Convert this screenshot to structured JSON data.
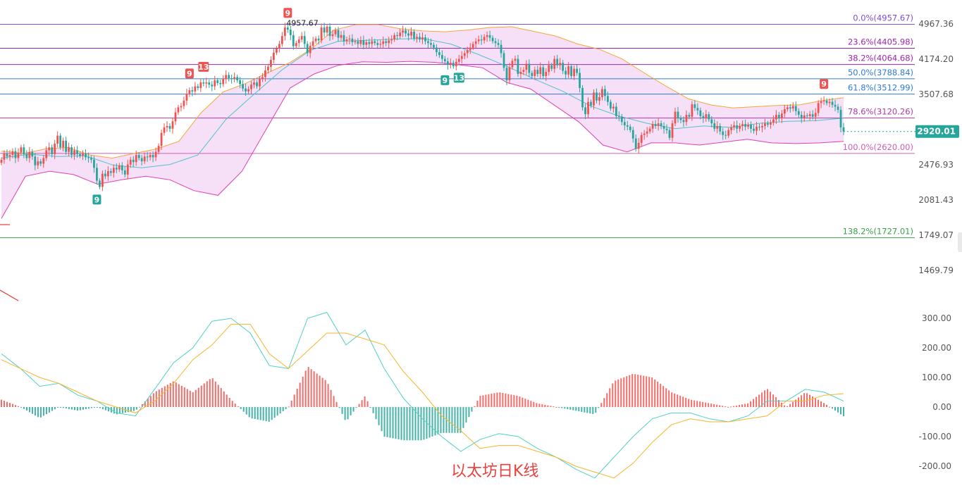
{
  "caption": "以太坊日K线",
  "colors": {
    "up": "#ef5350",
    "down": "#26a69a",
    "bb_upper": "#f7a636",
    "bb_lower": "#e040b0",
    "bb_mid": "#4fc3c7",
    "bb_fill": "#f3d6f5",
    "macd_fast": "#4fd1c5",
    "macd_slow": "#f7b52c",
    "price_tag": "#26a69a"
  },
  "chart_data": [
    {
      "type": "candlestick",
      "title": "",
      "current_price": "2920.01",
      "high_marker": "4957.67",
      "y_axis_ticks": [
        "4967.36",
        "4174.20",
        "3507.68",
        "2476.93",
        "2081.43",
        "1749.07",
        "1469.79"
      ],
      "ylim": [
        1400,
        5100
      ],
      "y_scale": "log",
      "fib_levels": [
        {
          "label": "0.0%(4957.67)",
          "price": 4957.67,
          "color": "#7b4fd0"
        },
        {
          "label": "23.6%(4405.98)",
          "price": 4405.98,
          "color": "#9c27b0"
        },
        {
          "label": "38.2%(4064.68)",
          "price": 4064.68,
          "color": "#9c27b0"
        },
        {
          "label": "50.0%(3788.84)",
          "price": 3788.84,
          "color": "#2f7bd9"
        },
        {
          "label": "61.8%(3512.99)",
          "price": 3512.99,
          "color": "#2f7bd9"
        },
        {
          "label": "78.6%(3120.26)",
          "price": 3120.26,
          "color": "#b03aa8"
        },
        {
          "label": "100.0%(2620.00)",
          "price": 2620.0,
          "color": "#d65bb5"
        },
        {
          "label": "138.2%(1727.01)",
          "price": 1727.01,
          "color": "#3aa14a"
        }
      ],
      "td_markers": [
        {
          "label": "9",
          "bar": 34,
          "position": "below",
          "color": "#26a69a"
        },
        {
          "label": "9",
          "bar": 67,
          "position": "above",
          "color": "#ef5350"
        },
        {
          "label": "13",
          "bar": 72,
          "position": "above",
          "color": "#ef5350"
        },
        {
          "label": "9",
          "bar": 102,
          "position": "above",
          "color": "#ef5350"
        },
        {
          "label": "9",
          "bar": 158,
          "position": "below",
          "color": "#26a69a"
        },
        {
          "label": "13",
          "bar": 163,
          "position": "below",
          "color": "#26a69a"
        },
        {
          "label": "9",
          "bar": 293,
          "position": "above",
          "color": "#ef5350"
        }
      ],
      "closes": [
        2540,
        2620,
        2580,
        2600,
        2650,
        2560,
        2630,
        2700,
        2610,
        2560,
        2640,
        2580,
        2470,
        2520,
        2490,
        2560,
        2660,
        2700,
        2610,
        2750,
        2860,
        2700,
        2790,
        2640,
        2700,
        2600,
        2660,
        2610,
        2590,
        2620,
        2570,
        2560,
        2540,
        2440,
        2290,
        2220,
        2370,
        2340,
        2400,
        2380,
        2440,
        2420,
        2470,
        2410,
        2360,
        2480,
        2540,
        2510,
        2600,
        2560,
        2520,
        2580,
        2570,
        2600,
        2570,
        2640,
        2720,
        2900,
        2980,
        3000,
        2960,
        3070,
        3210,
        3290,
        3310,
        3400,
        3520,
        3580,
        3560,
        3650,
        3620,
        3720,
        3700,
        3720,
        3680,
        3650,
        3760,
        3710,
        3690,
        3780,
        3860,
        3800,
        3790,
        3820,
        3760,
        3690,
        3610,
        3560,
        3600,
        3680,
        3720,
        3650,
        3780,
        3820,
        3950,
        4020,
        4160,
        4310,
        4400,
        4500,
        4680,
        4880,
        4830,
        4700,
        4450,
        4520,
        4600,
        4680,
        4500,
        4300,
        4460,
        4560,
        4620,
        4580,
        4880,
        4760,
        4900,
        4680,
        4720,
        4820,
        4640,
        4700,
        4560,
        4600,
        4620,
        4540,
        4560,
        4500,
        4580,
        4480,
        4540,
        4500,
        4560,
        4520,
        4480,
        4500,
        4560,
        4520,
        4580,
        4600,
        4700,
        4680,
        4760,
        4810,
        4740,
        4690,
        4780,
        4620,
        4660,
        4600,
        4650,
        4560,
        4520,
        4480,
        4420,
        4320,
        4260,
        4180,
        4130,
        4060,
        4100,
        4030,
        4120,
        4180,
        4240,
        4300,
        4360,
        4420,
        4500,
        4560,
        4600,
        4580,
        4660,
        4700,
        4640,
        4560,
        4520,
        4480,
        4300,
        4000,
        3760,
        4010,
        4140,
        4180,
        3880,
        3920,
        3960,
        4080,
        3900,
        3840,
        3960,
        3880,
        4010,
        3840,
        3920,
        4050,
        3980,
        4180,
        4050,
        4100,
        3940,
        3870,
        4030,
        3840,
        3980,
        3900,
        3620,
        3290,
        3180,
        3380,
        3320,
        3540,
        3400,
        3460,
        3600,
        3480,
        3380,
        3270,
        3300,
        3150,
        3140,
        3060,
        3010,
        2990,
        2940,
        2820,
        2680,
        2760,
        2870,
        2890,
        2920,
        2960,
        3030,
        3000,
        3040,
        3000,
        2960,
        2940,
        2830,
        3040,
        3220,
        3120,
        3090,
        3060,
        3170,
        3140,
        3340,
        3280,
        3240,
        3150,
        3120,
        3180,
        3100,
        3040,
        2960,
        3000,
        2920,
        2870,
        2860,
        2940,
        2980,
        3010,
        2960,
        3000,
        3030,
        2990,
        3020,
        2960,
        2930,
        2990,
        2980,
        3000,
        3040,
        3020,
        3050,
        3100,
        3170,
        3120,
        3190,
        3260,
        3290,
        3270,
        3310,
        3230,
        3170,
        3120,
        3160,
        3150,
        3180,
        3140,
        3200,
        3360,
        3390,
        3400,
        3360,
        3380,
        3330,
        3300,
        3250,
        2980,
        2920
      ],
      "bb_upper_anchor_values": [
        2650,
        2620,
        2680,
        2700,
        2600,
        2560,
        2620,
        2680,
        2780,
        3200,
        3550,
        3700,
        3900,
        4100,
        4400,
        4820,
        4950,
        4950,
        4850,
        4800,
        4780,
        4820,
        4880,
        4900,
        4790,
        4680,
        4500,
        4380,
        4180,
        3900,
        3650,
        3430,
        3330,
        3280,
        3300,
        3320,
        3330,
        3400,
        3450
      ],
      "bb_lower_anchor_values": [
        1900,
        2340,
        2400,
        2360,
        2250,
        2300,
        2340,
        2300,
        2180,
        2130,
        2400,
        2950,
        3620,
        3880,
        4050,
        4120,
        4110,
        4130,
        4110,
        4060,
        4000,
        3720,
        3600,
        3320,
        3060,
        2730,
        2640,
        2760,
        2760,
        2730,
        2770,
        2810,
        2760,
        2750,
        2760,
        2780
      ],
      "bb_mid_anchor_values": [
        2560,
        2610,
        2580,
        2590,
        2470,
        2440,
        2480,
        2600,
        3100,
        3510,
        3960,
        4360,
        4560,
        4580,
        4610,
        4620,
        4500,
        4270,
        4030,
        3780,
        3560,
        3310,
        3150,
        3040,
        2960,
        3000,
        2980,
        3040,
        3070,
        3080,
        3120
      ]
    },
    {
      "type": "macd",
      "title": "",
      "y_axis_ticks": [
        "300.00",
        "200.00",
        "100.00",
        "0.00",
        "-100.00",
        "-200.00"
      ],
      "ylim": [
        -260,
        340
      ],
      "fast_anchor_values": [
        180,
        130,
        70,
        80,
        40,
        20,
        -20,
        -30,
        60,
        150,
        200,
        290,
        300,
        250,
        140,
        130,
        300,
        320,
        210,
        260,
        130,
        30,
        -40,
        -100,
        -150,
        -110,
        -90,
        -100,
        -140,
        -170,
        -210,
        -240,
        -170,
        -100,
        -40,
        -20,
        -20,
        -40,
        -50,
        -30,
        20,
        20,
        60,
        50,
        20
      ],
      "slow_anchor_values": [
        160,
        130,
        100,
        80,
        50,
        20,
        0,
        -20,
        20,
        80,
        160,
        210,
        280,
        280,
        180,
        130,
        190,
        250,
        250,
        230,
        210,
        120,
        50,
        -30,
        -80,
        -140,
        -130,
        -130,
        -150,
        -170,
        -200,
        -220,
        -240,
        -190,
        -120,
        -60,
        -40,
        -50,
        -50,
        -40,
        -30,
        20,
        20,
        40,
        45
      ]
    }
  ]
}
